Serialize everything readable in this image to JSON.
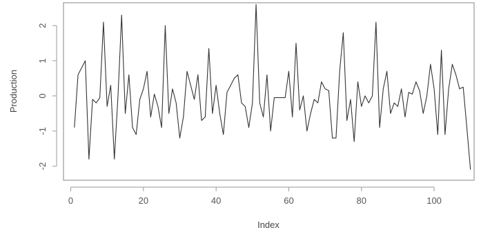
{
  "chart_data": {
    "type": "line",
    "xlabel": "Index",
    "ylabel": "Production",
    "xlim": [
      -2,
      111
    ],
    "ylim": [
      -2.4,
      2.65
    ],
    "xticks": [
      0,
      20,
      40,
      60,
      80,
      100
    ],
    "xtick_labels": [
      "0",
      "20",
      "40",
      "60",
      "80",
      "100"
    ],
    "yticks": [
      -2,
      -1,
      0,
      1,
      2
    ],
    "ytick_labels": [
      "-2",
      "-1",
      "0",
      "1",
      "2"
    ],
    "grid": false,
    "line_color": "#333333",
    "series": [
      {
        "x": [
          1,
          2,
          3,
          4,
          5,
          6,
          7,
          8,
          9,
          10,
          11,
          12,
          13,
          14,
          15,
          16,
          17,
          18,
          19,
          20,
          21,
          22,
          23,
          24,
          25,
          26,
          27,
          28,
          29,
          30,
          31,
          32,
          33,
          34,
          35,
          36,
          37,
          38,
          39,
          40,
          41,
          42,
          43,
          44,
          45,
          46,
          47,
          48,
          49,
          50,
          51,
          52,
          53,
          54,
          55,
          56,
          57,
          58,
          59,
          60,
          61,
          62,
          63,
          64,
          65,
          66,
          67,
          68,
          69,
          70,
          71,
          72,
          73,
          74,
          75,
          76,
          77,
          78,
          79,
          80,
          81,
          82,
          83,
          84,
          85,
          86,
          87,
          88,
          89,
          90,
          91,
          92,
          93,
          94,
          95,
          96,
          97,
          98,
          99,
          100,
          101,
          102,
          103,
          104,
          105,
          106,
          107,
          108,
          109,
          110
        ],
        "values": [
          -0.9,
          0.6,
          0.8,
          1.0,
          -1.8,
          -0.1,
          -0.2,
          -0.05,
          2.1,
          -0.3,
          0.3,
          -1.8,
          0.0,
          2.3,
          -0.5,
          0.6,
          -0.9,
          -1.1,
          -0.1,
          0.2,
          0.7,
          -0.6,
          0.05,
          -0.3,
          -0.9,
          2.0,
          -0.5,
          0.2,
          -0.2,
          -1.2,
          -0.6,
          0.7,
          0.3,
          -0.1,
          0.6,
          -0.7,
          -0.6,
          1.35,
          -0.5,
          0.3,
          -0.5,
          -1.1,
          0.1,
          0.3,
          0.5,
          0.6,
          -0.2,
          -0.3,
          -0.9,
          -0.2,
          2.6,
          -0.2,
          -0.6,
          0.6,
          -1.0,
          -0.05,
          -0.05,
          -0.05,
          -0.05,
          0.7,
          -0.6,
          1.5,
          -0.4,
          0.0,
          -1.0,
          -0.5,
          -0.1,
          -0.2,
          0.4,
          0.2,
          0.15,
          -1.2,
          -1.2,
          0.7,
          1.8,
          -0.7,
          -0.1,
          -1.3,
          0.4,
          -0.3,
          0.0,
          -0.2,
          0.0,
          2.1,
          -0.9,
          0.2,
          0.7,
          -0.5,
          -0.2,
          -0.3,
          0.2,
          -0.6,
          0.1,
          0.05,
          0.4,
          0.15,
          -0.5,
          0.0,
          0.9,
          0.2,
          -1.1,
          1.3,
          -1.1,
          0.2,
          0.9,
          0.6,
          0.2,
          0.25,
          -0.9,
          -2.1
        ]
      }
    ]
  }
}
